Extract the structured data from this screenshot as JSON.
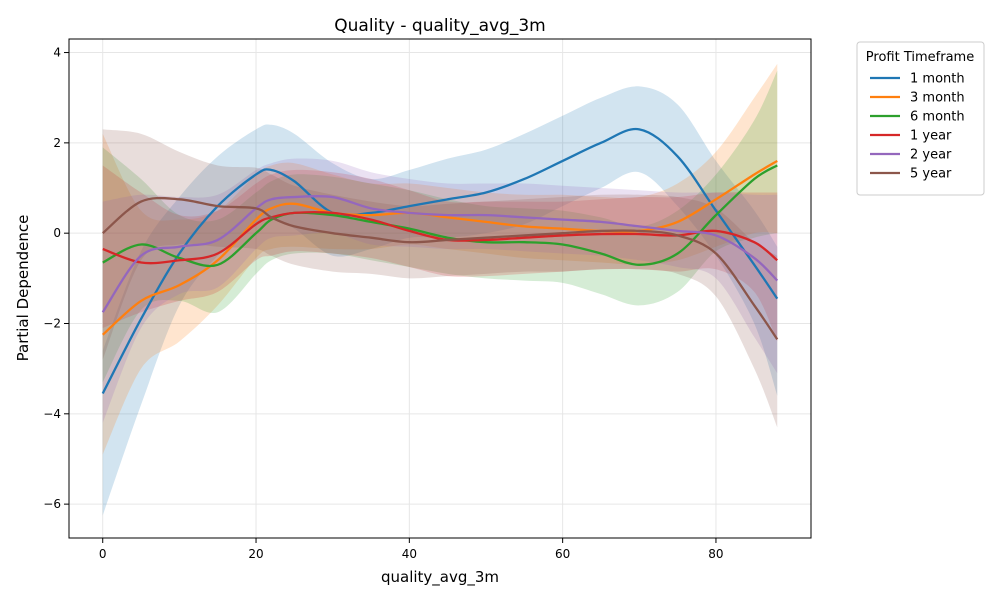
{
  "chart_data": {
    "type": "line",
    "title": "Quality - quality_avg_3m",
    "xlabel": "quality_avg_3m",
    "ylabel": "Partial Dependence",
    "xlim": [
      -4.4,
      92.4
    ],
    "ylim": [
      -6.75,
      4.3
    ],
    "xticks": [
      0,
      20,
      40,
      60,
      80
    ],
    "yticks": [
      -6,
      -4,
      -2,
      0,
      2,
      4
    ],
    "xtick_labels": [
      "0",
      "20",
      "40",
      "60",
      "80"
    ],
    "ytick_labels": [
      "−6",
      "−4",
      "−2",
      "0",
      "2",
      "4"
    ],
    "grid": true,
    "legend": {
      "title": "Profit Timeframe",
      "placement": "outside-top-right"
    },
    "x": [
      0,
      5,
      10,
      15,
      20,
      22,
      25,
      30,
      35,
      40,
      45,
      50,
      55,
      60,
      65,
      70,
      75,
      80,
      85,
      88
    ],
    "series": [
      {
        "name": "1 month",
        "color": "#1f77b4",
        "values": [
          -3.55,
          -1.9,
          -0.45,
          0.6,
          1.3,
          1.4,
          1.15,
          0.45,
          0.45,
          0.6,
          0.75,
          0.9,
          1.2,
          1.6,
          2.0,
          2.3,
          1.7,
          0.5,
          -0.7,
          -1.45
        ],
        "upper": [
          -2.6,
          -0.4,
          0.8,
          1.7,
          2.3,
          2.4,
          2.2,
          1.55,
          1.2,
          1.4,
          1.65,
          1.85,
          2.2,
          2.6,
          3.0,
          3.25,
          2.85,
          1.6,
          0.5,
          -0.3
        ],
        "lower": [
          -6.25,
          -3.8,
          -1.6,
          -0.5,
          0.2,
          0.3,
          0.1,
          -0.5,
          -0.35,
          -0.1,
          -0.1,
          0.0,
          0.2,
          0.6,
          1.0,
          1.35,
          0.6,
          -0.5,
          -2.0,
          -3.6
        ]
      },
      {
        "name": "3 month",
        "color": "#ff7f0e",
        "values": [
          -2.25,
          -1.5,
          -1.15,
          -0.6,
          0.3,
          0.55,
          0.65,
          0.45,
          0.4,
          0.45,
          0.35,
          0.25,
          0.15,
          0.1,
          0.05,
          0.05,
          0.25,
          0.75,
          1.3,
          1.6
        ],
        "upper": [
          2.2,
          0.5,
          0.3,
          0.5,
          1.3,
          1.5,
          1.55,
          1.3,
          1.1,
          1.1,
          1.0,
          0.9,
          0.85,
          0.85,
          0.8,
          0.8,
          1.1,
          1.8,
          3.0,
          3.75
        ],
        "lower": [
          -4.9,
          -3.0,
          -2.4,
          -1.6,
          -0.55,
          -0.35,
          -0.3,
          -0.35,
          -0.35,
          -0.25,
          -0.35,
          -0.45,
          -0.55,
          -0.6,
          -0.65,
          -0.7,
          -0.6,
          -0.3,
          0.0,
          0.0
        ]
      },
      {
        "name": "6 month",
        "color": "#2ca02c",
        "values": [
          -0.65,
          -0.25,
          -0.55,
          -0.7,
          0.0,
          0.3,
          0.45,
          0.4,
          0.25,
          0.1,
          -0.1,
          -0.2,
          -0.2,
          -0.25,
          -0.45,
          -0.7,
          -0.45,
          0.4,
          1.2,
          1.5
        ],
        "upper": [
          1.9,
          1.2,
          0.4,
          0.3,
          0.9,
          1.15,
          1.3,
          1.25,
          1.1,
          0.95,
          0.75,
          0.6,
          0.55,
          0.5,
          0.35,
          0.15,
          0.5,
          1.3,
          2.5,
          3.6
        ],
        "lower": [
          -3.3,
          -1.7,
          -1.5,
          -1.75,
          -0.9,
          -0.6,
          -0.45,
          -0.45,
          -0.6,
          -0.75,
          -0.9,
          -1.0,
          -1.05,
          -1.1,
          -1.35,
          -1.6,
          -1.3,
          -0.4,
          -0.1,
          0.0
        ]
      },
      {
        "name": "1 year",
        "color": "#d62728",
        "values": [
          -0.35,
          -0.65,
          -0.6,
          -0.45,
          0.2,
          0.35,
          0.45,
          0.45,
          0.3,
          0.05,
          -0.15,
          -0.15,
          -0.1,
          -0.05,
          -0.02,
          -0.02,
          -0.05,
          0.05,
          -0.2,
          -0.6
        ],
        "upper": [
          1.5,
          0.9,
          0.4,
          0.5,
          1.1,
          1.3,
          1.4,
          1.35,
          1.2,
          0.95,
          0.7,
          0.7,
          0.7,
          0.7,
          0.75,
          0.8,
          0.8,
          0.9,
          0.9,
          0.9
        ],
        "lower": [
          -2.1,
          -1.75,
          -1.5,
          -1.3,
          -0.6,
          -0.5,
          -0.4,
          -0.45,
          -0.55,
          -0.75,
          -0.95,
          -0.95,
          -0.9,
          -0.85,
          -0.8,
          -0.8,
          -0.85,
          -0.8,
          -1.3,
          -2.4
        ]
      },
      {
        "name": "2 year",
        "color": "#9467bd",
        "values": [
          -1.75,
          -0.5,
          -0.3,
          -0.15,
          0.55,
          0.75,
          0.8,
          0.8,
          0.55,
          0.45,
          0.4,
          0.4,
          0.35,
          0.3,
          0.25,
          0.15,
          0.05,
          -0.05,
          -0.55,
          -1.05
        ],
        "upper": [
          0.7,
          0.85,
          0.8,
          0.85,
          1.4,
          1.55,
          1.65,
          1.6,
          1.35,
          1.2,
          1.1,
          1.1,
          1.1,
          1.05,
          1.0,
          0.95,
          0.9,
          0.9,
          0.85,
          0.85
        ],
        "lower": [
          -4.2,
          -2.1,
          -1.35,
          -1.2,
          -0.35,
          -0.1,
          -0.05,
          0.0,
          -0.25,
          -0.3,
          -0.35,
          -0.35,
          -0.4,
          -0.45,
          -0.5,
          -0.6,
          -0.75,
          -1.0,
          -2.3,
          -3.1
        ]
      },
      {
        "name": "5 year",
        "color": "#8c564b",
        "values": [
          0.0,
          0.7,
          0.75,
          0.6,
          0.55,
          0.35,
          0.15,
          0.0,
          -0.1,
          -0.2,
          -0.15,
          -0.1,
          -0.05,
          0.0,
          0.05,
          0.05,
          -0.05,
          -0.45,
          -1.6,
          -2.35
        ],
        "upper": [
          2.3,
          2.2,
          1.8,
          1.5,
          1.45,
          1.3,
          1.05,
          0.85,
          0.7,
          0.6,
          0.65,
          0.7,
          0.75,
          0.8,
          0.85,
          0.85,
          0.8,
          0.55,
          -0.2,
          -0.5
        ],
        "lower": [
          -2.8,
          -0.6,
          -0.25,
          -0.3,
          -0.35,
          -0.5,
          -0.7,
          -0.85,
          -0.9,
          -1.0,
          -0.95,
          -0.9,
          -0.85,
          -0.85,
          -0.8,
          -0.8,
          -0.9,
          -1.4,
          -3.0,
          -4.3
        ]
      }
    ]
  }
}
